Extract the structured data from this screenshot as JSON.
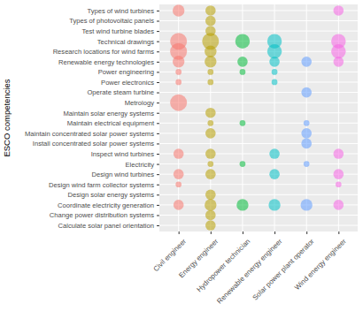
{
  "chart_data": {
    "type": "bubble",
    "y_label": "ESCO competencies",
    "categories": [
      "Civil engineer",
      "Energy engineer",
      "Hydropower technician",
      "Renewable energy engineer",
      "Solar power plant operator",
      "Wind energy engineer"
    ],
    "y_categories": [
      "Types of wind turbines",
      "Types of photovoltaic panels",
      "Test wind turbine blades",
      "Technical drawings",
      "Research locations for wind farms",
      "Renewable energy technologies",
      "Power engineering",
      "Power electronics",
      "Operate steam turbine",
      "Metrology",
      "Maintain solar energy systems",
      "Maintain electrical equipment",
      "Maintain concentrated solar power systems",
      "Install concentrated solar power systems",
      "Inspect wind turbines",
      "Electricity",
      "Design wind turbines",
      "Design wind farm collector systems",
      "Design solar energy systems",
      "Coordinate electricity generation",
      "Change power distribution systems",
      "Calculate solar panel orientation"
    ],
    "colors": [
      "#F8766D",
      "#B79F00",
      "#00BA38",
      "#00BFC4",
      "#619CFF",
      "#F564E3"
    ],
    "sizes": [
      [
        4,
        null,
        null,
        8,
        8,
        4,
        1,
        1,
        null,
        8,
        null,
        null,
        null,
        null,
        3,
        null,
        3,
        1,
        null,
        3,
        null,
        null
      ],
      [
        3,
        3,
        3,
        8,
        4,
        4,
        1,
        1,
        null,
        null,
        3,
        1,
        3,
        null,
        3,
        1,
        3,
        null,
        3,
        4,
        3,
        3
      ],
      [
        null,
        null,
        null,
        6,
        null,
        3,
        1,
        null,
        null,
        null,
        null,
        1,
        null,
        null,
        null,
        1,
        null,
        null,
        null,
        4,
        null,
        null
      ],
      [
        null,
        null,
        null,
        6,
        6,
        3,
        1,
        1,
        null,
        null,
        null,
        null,
        null,
        null,
        3,
        null,
        3,
        null,
        null,
        4,
        null,
        null
      ],
      [
        null,
        null,
        null,
        null,
        null,
        3,
        null,
        null,
        3,
        null,
        null,
        1,
        3,
        3,
        null,
        1,
        null,
        null,
        null,
        4,
        null,
        null
      ],
      [
        3,
        null,
        null,
        6,
        6,
        3,
        null,
        null,
        null,
        null,
        null,
        null,
        null,
        null,
        3,
        null,
        3,
        1,
        null,
        3,
        null,
        null
      ]
    ],
    "grid": true
  }
}
